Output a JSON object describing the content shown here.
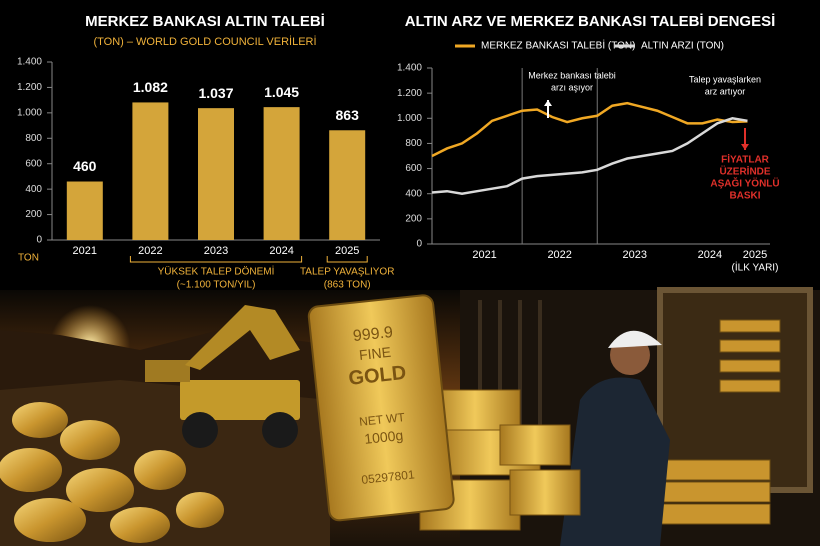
{
  "chart_data": [
    {
      "type": "bar",
      "title": "MERKEZ BANKASI ALTIN TALEBİ",
      "subtitle": "(TON) – WORLD GOLD COUNCIL VERİLERİ",
      "y_label": "TON",
      "categories": [
        "2021",
        "2022",
        "2023",
        "2024",
        "2025"
      ],
      "values": [
        460,
        1082,
        1037,
        1045,
        863
      ],
      "value_labels": [
        "460",
        "1.082",
        "1.037",
        "1.045",
        "863"
      ],
      "color": "#d4a53a",
      "ylim": [
        0,
        1400
      ],
      "yticks": [
        0,
        200,
        400,
        600,
        800,
        {
          "value": 1000,
          "label": "1.000"
        },
        {
          "value": 1200,
          "label": "1.200"
        },
        {
          "value": 1400,
          "label": "1.400"
        }
      ],
      "annotations": [
        {
          "lines": [
            "YÜKSEK TALEP DÖNEMİ",
            "(~1.100 TON/YIL)"
          ]
        },
        {
          "lines": [
            "TALEP YAVAŞLIYOR",
            "(863 TON)"
          ]
        }
      ]
    },
    {
      "type": "line",
      "title": "ALTIN ARZ VE MERKEZ BANKASI TALEBİ DENGESİ",
      "x": [
        2020.8,
        2021.0,
        2021.2,
        2021.4,
        2021.6,
        2021.8,
        2022.0,
        2022.2,
        2022.4,
        2022.6,
        2022.8,
        2023.0,
        2023.2,
        2023.4,
        2023.6,
        2023.8,
        2024.0,
        2024.2,
        2024.4,
        2024.6,
        2024.8,
        2025.0
      ],
      "series": [
        {
          "name": "MERKEZ BANKASI TALEBİ (TON)",
          "color": "#f0a824",
          "values": [
            700,
            760,
            800,
            880,
            980,
            1020,
            1060,
            1070,
            1010,
            970,
            1000,
            1020,
            1100,
            1120,
            1090,
            1060,
            1010,
            960,
            960,
            990,
            970,
            975
          ]
        },
        {
          "name": "ALTIN ARZI (TON)",
          "color": "#d9d9d9",
          "values": [
            410,
            420,
            400,
            420,
            440,
            460,
            520,
            540,
            550,
            560,
            570,
            590,
            640,
            680,
            700,
            720,
            740,
            800,
            880,
            960,
            1000,
            980
          ]
        }
      ],
      "xlim": [
        2020.8,
        2025.3
      ],
      "xticks": [
        {
          "value": 2021.5,
          "label": "2021"
        },
        {
          "value": 2022.5,
          "label": "2022"
        },
        {
          "value": 2023.5,
          "label": "2023"
        },
        {
          "value": 2024.5,
          "label": "2024"
        },
        {
          "value": 2025.1,
          "label": "2025",
          "sublabel": "(İLK YARI)"
        }
      ],
      "dividers": [
        2022,
        2023
      ],
      "ylim": [
        0,
        1400
      ],
      "yticks": [
        0,
        200,
        400,
        600,
        800,
        {
          "value": 1000,
          "label": "1.000"
        },
        {
          "value": 1200,
          "label": "1.200"
        },
        {
          "value": 1400,
          "label": "1.400"
        }
      ],
      "annotations": [
        {
          "lines": [
            "Merkez bankası talebi",
            "arzı aşıyor"
          ],
          "color": "#ffffff"
        },
        {
          "lines": [
            "Talep yavaşlarken",
            "arz artıyor"
          ],
          "color": "#ffffff"
        },
        {
          "lines": [
            "FİYATLAR",
            "ÜZERİNDE",
            "AŞAĞI YÖNLÜ",
            "BASKI"
          ],
          "color": "#e0302a"
        }
      ]
    }
  ],
  "illustration": {
    "bar_stamp": [
      "999.9",
      "FINE",
      "GOLD",
      "NET WT",
      "1000g",
      "05297801"
    ]
  }
}
